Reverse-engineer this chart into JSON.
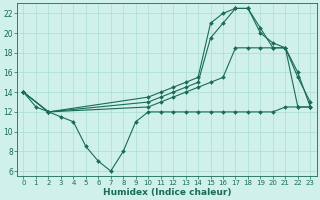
{
  "xlabel": "Humidex (Indice chaleur)",
  "bg_color": "#cff0eb",
  "grid_color": "#aaddd7",
  "line_color": "#1a6b5a",
  "xlim": [
    -0.5,
    23.5
  ],
  "ylim": [
    5.5,
    23
  ],
  "yticks": [
    6,
    8,
    10,
    12,
    14,
    16,
    18,
    20,
    22
  ],
  "xticks": [
    0,
    1,
    2,
    3,
    4,
    5,
    6,
    7,
    8,
    9,
    10,
    11,
    12,
    13,
    14,
    15,
    16,
    17,
    18,
    19,
    20,
    21,
    22,
    23
  ],
  "line1_x": [
    0,
    1,
    2,
    3,
    4,
    5,
    6,
    7,
    8,
    9,
    10,
    11,
    12,
    13,
    14,
    15,
    16,
    17,
    18,
    19,
    20,
    21,
    22,
    23
  ],
  "line1_y": [
    14,
    12.5,
    12,
    11.5,
    11,
    8.5,
    7,
    6,
    8,
    11,
    12,
    12,
    12,
    12,
    12,
    12,
    12,
    12,
    12,
    12,
    12,
    12.5,
    12.5,
    12.5
  ],
  "line2_x": [
    0,
    2,
    10,
    11,
    12,
    13,
    14,
    15,
    16,
    17,
    18,
    19,
    20,
    21,
    22,
    23
  ],
  "line2_y": [
    14,
    12,
    12.5,
    13,
    13.5,
    14,
    14.5,
    15,
    15.5,
    18.5,
    18.5,
    18.5,
    18.5,
    18.5,
    12.5,
    12.5
  ],
  "line3_x": [
    0,
    2,
    10,
    11,
    12,
    13,
    14,
    15,
    16,
    17,
    18,
    19,
    20,
    21,
    22,
    23
  ],
  "line3_y": [
    14,
    12,
    13,
    13.5,
    14,
    14.5,
    15,
    19.5,
    21,
    22.5,
    22.5,
    20.5,
    18.5,
    18.5,
    15.5,
    13
  ],
  "line4_x": [
    0,
    2,
    10,
    11,
    12,
    13,
    14,
    15,
    16,
    17,
    18,
    19,
    20,
    21,
    22,
    23
  ],
  "line4_y": [
    14,
    12,
    13.5,
    14,
    14.5,
    15,
    15.5,
    21,
    22,
    22.5,
    22.5,
    20,
    19,
    18.5,
    16,
    12.5
  ]
}
